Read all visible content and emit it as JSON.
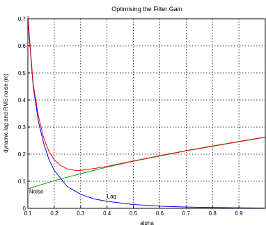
{
  "chart_data": {
    "type": "line",
    "title": "Optimising the Filter Gain",
    "xlabel": "alpha",
    "ylabel": "dynamic lag and RMS noise (m)",
    "xlim": [
      0.1,
      1.0
    ],
    "ylim": [
      0,
      0.7
    ],
    "xticks": [
      "0.1",
      "0.2",
      "0.3",
      "0.4",
      "0.5",
      "0.6",
      "0.7",
      "0.8",
      "0.9"
    ],
    "yticks": [
      "0",
      "0.1",
      "0.2",
      "0.3",
      "0.4",
      "0.5",
      "0.6",
      "0.7"
    ],
    "grid": true,
    "series": [
      {
        "color": "#0000ff",
        "x": [
          0.1,
          0.12,
          0.14,
          0.16,
          0.18,
          0.2,
          0.25,
          0.3,
          0.35,
          0.4,
          0.5,
          0.6,
          0.7,
          0.8,
          0.9,
          1.0
        ],
        "y": [
          0.7,
          0.45,
          0.32,
          0.24,
          0.18,
          0.14,
          0.08,
          0.052,
          0.035,
          0.026,
          0.014,
          0.008,
          0.005,
          0.003,
          0.002,
          0.001
        ]
      },
      {
        "color": "#00a000",
        "x": [
          0.1,
          0.2,
          0.3,
          0.4,
          0.5,
          0.6,
          0.7,
          0.8,
          0.9,
          1.0
        ],
        "y": [
          0.072,
          0.102,
          0.128,
          0.152,
          0.174,
          0.193,
          0.212,
          0.229,
          0.246,
          0.262
        ]
      },
      {
        "color": "#ff0000",
        "x": [
          0.1,
          0.12,
          0.14,
          0.16,
          0.18,
          0.2,
          0.22,
          0.25,
          0.28,
          0.3,
          0.35,
          0.4,
          0.5,
          0.6,
          0.7,
          0.8,
          0.9,
          1.0
        ],
        "y": [
          0.71,
          0.46,
          0.34,
          0.26,
          0.21,
          0.18,
          0.16,
          0.145,
          0.14,
          0.14,
          0.147,
          0.155,
          0.175,
          0.194,
          0.213,
          0.23,
          0.247,
          0.263
        ]
      }
    ],
    "annotations": [
      {
        "text": "Noise",
        "x": 0.105,
        "y": 0.055
      },
      {
        "text": "Lag",
        "x": 0.4,
        "y": 0.037
      }
    ]
  }
}
